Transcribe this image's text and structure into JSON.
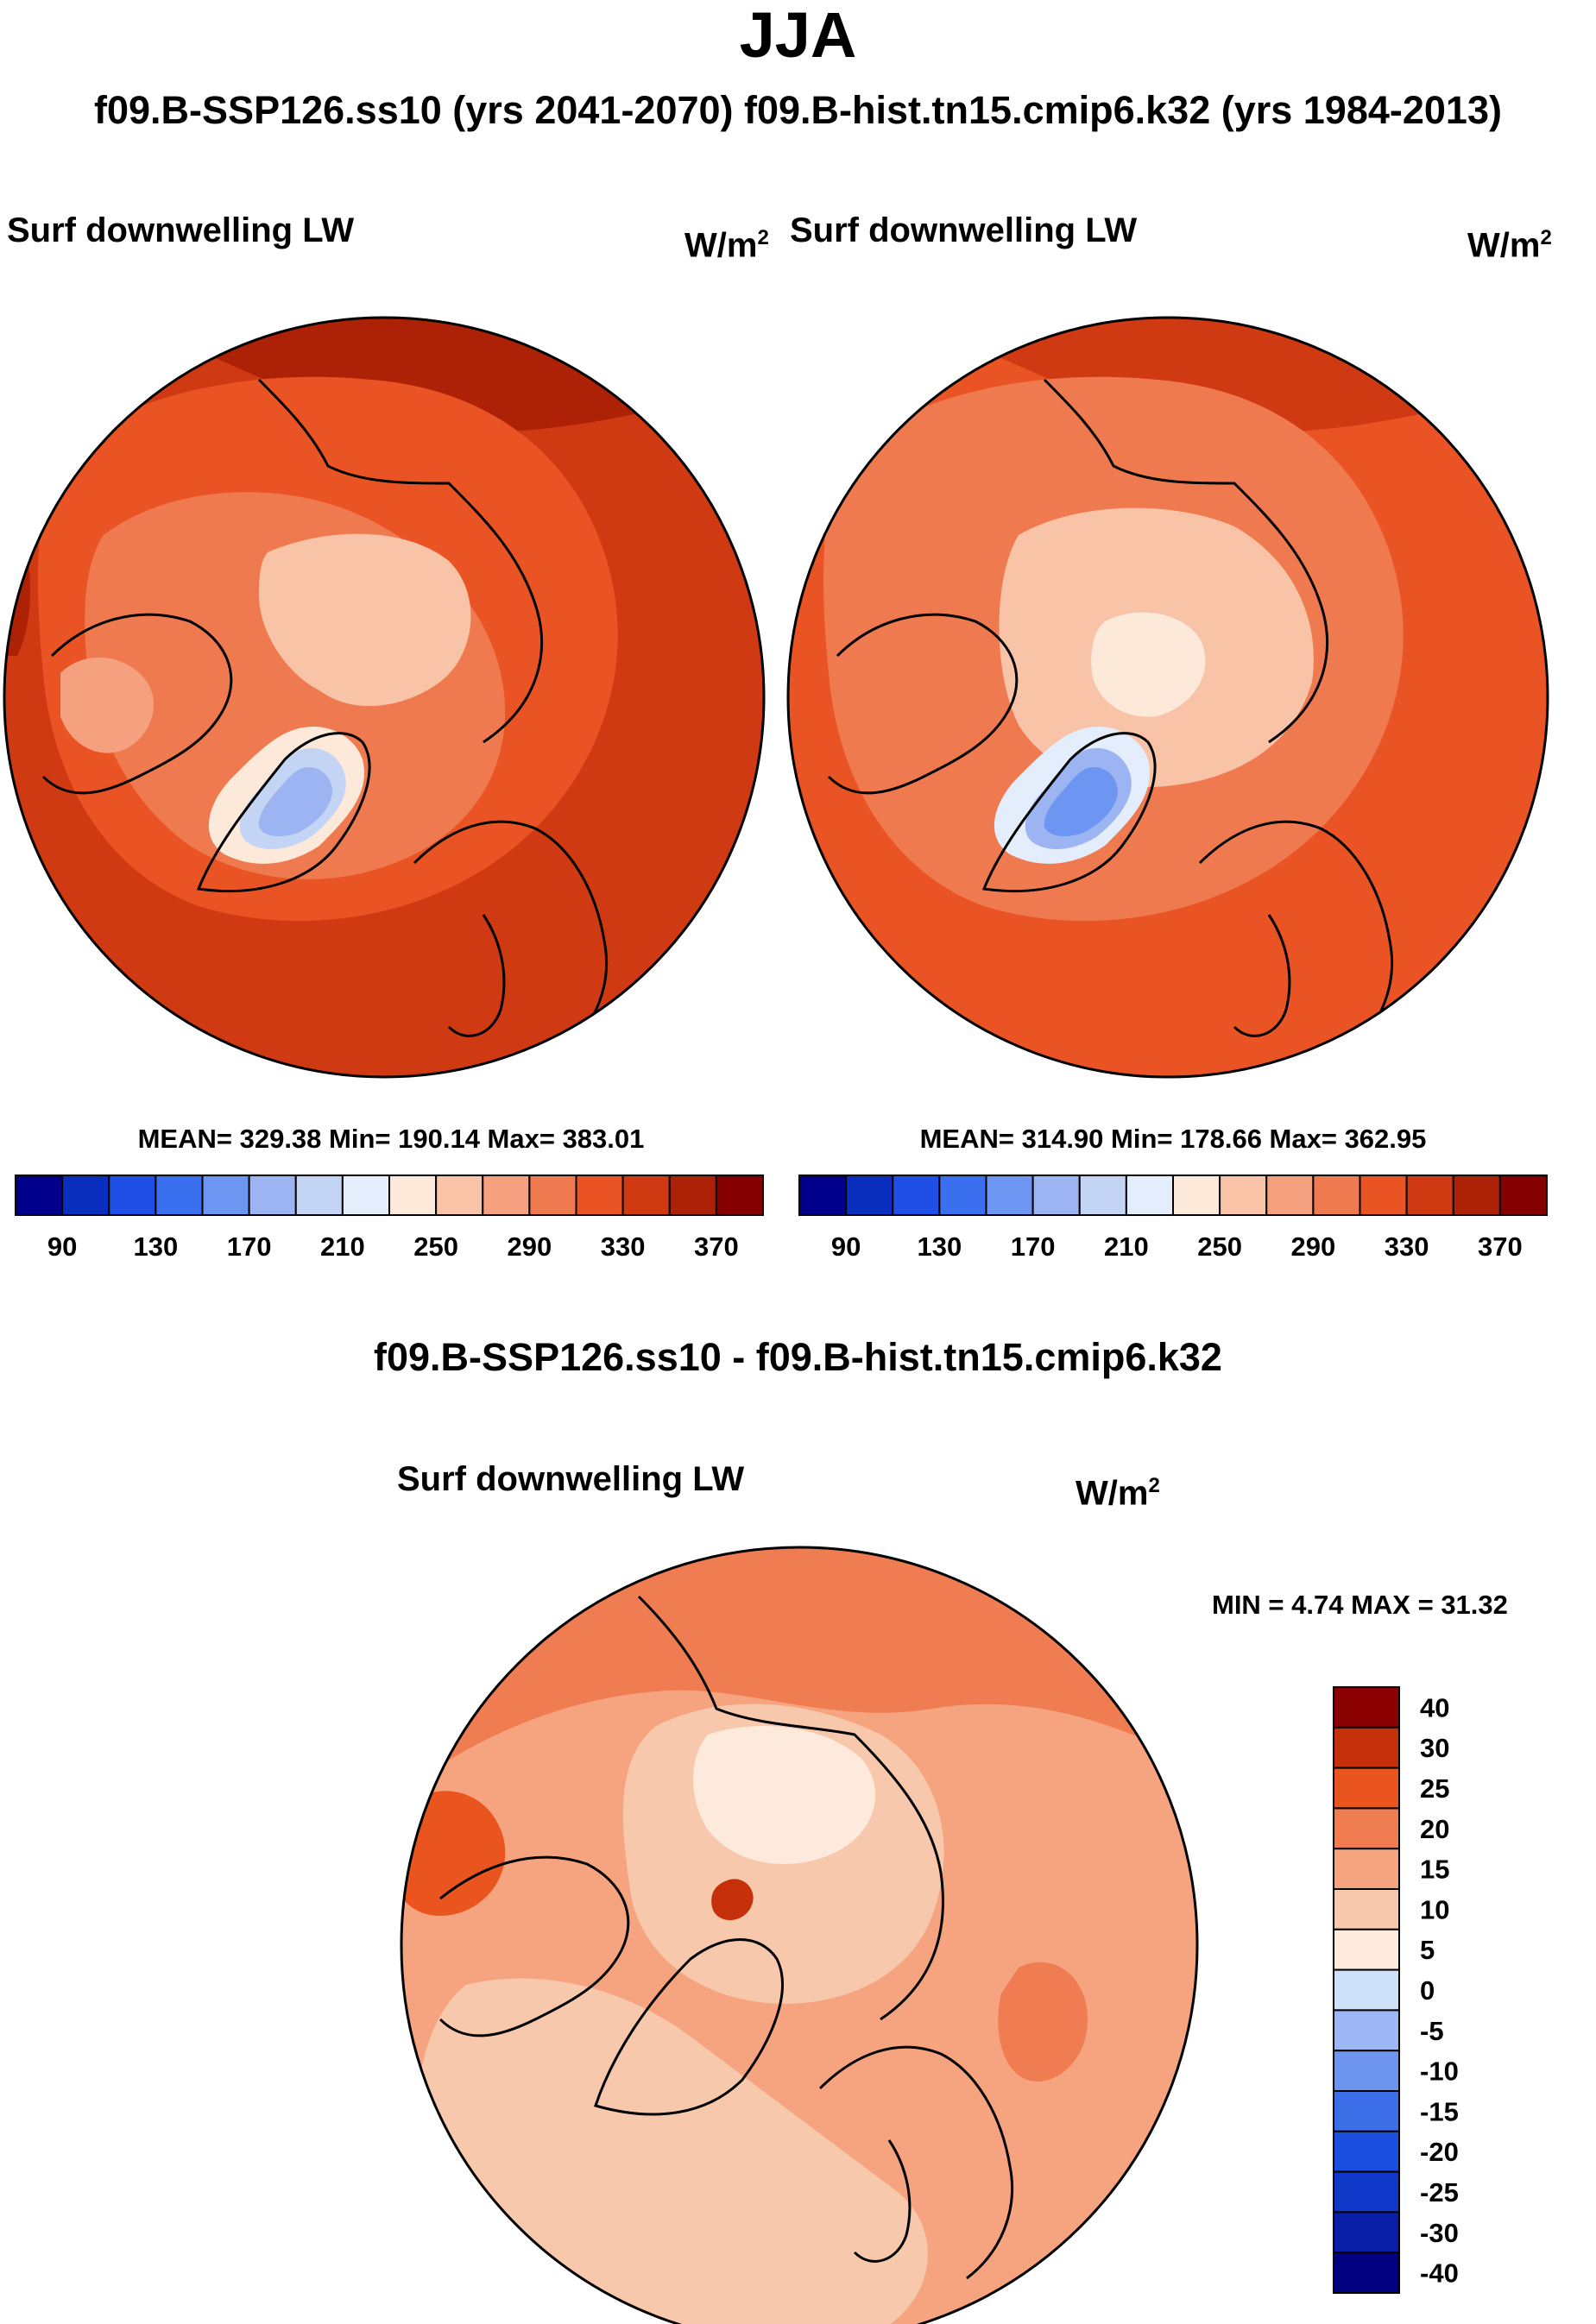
{
  "title": "JJA",
  "subtitle": "f09.B-SSP126.ss10 (yrs 2041-2070)  f09.B-hist.tn15.cmip6.k32 (yrs 1984-2013)",
  "colors": {
    "abs_scale": [
      "#00008b",
      "#0a2fbf",
      "#1f4fe6",
      "#3a6ff0",
      "#6d95f2",
      "#9cb5f2",
      "#c4d4f5",
      "#e3edfb",
      "#fde9da",
      "#f9c3a8",
      "#f5a07e",
      "#f07a4f",
      "#ea5424",
      "#d03a12",
      "#ad2106",
      "#850000"
    ],
    "diff_scale": [
      "#000080",
      "#0a1fa8",
      "#0f38c9",
      "#1a4fe0",
      "#3c6ee8",
      "#6d95f0",
      "#9db7f5",
      "#cfe1f9",
      "#fdeadc",
      "#f8c8ac",
      "#f5a47f",
      "#f07d51",
      "#e9541f",
      "#c52f0a",
      "#8b0000"
    ]
  },
  "panels": [
    {
      "title": "Surf downwelling LW",
      "units": "W/m",
      "units_sup": "2",
      "stats": "MEAN= 329.38  Min= 190.14  Max= 383.01"
    },
    {
      "title": "Surf downwelling LW",
      "units": "W/m",
      "units_sup": "2",
      "stats": "MEAN= 314.90  Min= 178.66  Max= 362.95"
    }
  ],
  "diff_panel": {
    "header": "f09.B-SSP126.ss10 - f09.B-hist.tn15.cmip6.k32",
    "title": "Surf downwelling LW",
    "units": "W/m",
    "units_sup": "2",
    "minmax": "MIN =   4.74 MAX =  31.32"
  },
  "chart_data": [
    {
      "type": "heatmap",
      "projection": "north polar stereographic",
      "title": "Surf downwelling LW",
      "units": "W/m2",
      "period": "f09.B-SSP126.ss10 (yrs 2041-2070)",
      "mean": 329.38,
      "min": 190.14,
      "max": 383.01,
      "colorbar_ticks": [
        "90",
        "130",
        "170",
        "210",
        "250",
        "290",
        "330",
        "370"
      ],
      "colorbar_levels": [
        90,
        110,
        130,
        150,
        170,
        190,
        210,
        230,
        250,
        270,
        290,
        310,
        330,
        350,
        370
      ]
    },
    {
      "type": "heatmap",
      "projection": "north polar stereographic",
      "title": "Surf downwelling LW",
      "units": "W/m2",
      "period": "f09.B-hist.tn15.cmip6.k32 (yrs 1984-2013)",
      "mean": 314.9,
      "min": 178.66,
      "max": 362.95,
      "colorbar_ticks": [
        "90",
        "130",
        "170",
        "210",
        "250",
        "290",
        "330",
        "370"
      ],
      "colorbar_levels": [
        90,
        110,
        130,
        150,
        170,
        190,
        210,
        230,
        250,
        270,
        290,
        310,
        330,
        350,
        370
      ]
    },
    {
      "type": "heatmap",
      "projection": "north polar stereographic",
      "title": "Surf downwelling LW",
      "units": "W/m2",
      "difference": "f09.B-SSP126.ss10 - f09.B-hist.tn15.cmip6.k32",
      "min": 4.74,
      "max": 31.32,
      "colorbar_ticks": [
        "40",
        "30",
        "25",
        "20",
        "15",
        "10",
        "5",
        "0",
        "-5",
        "-10",
        "-15",
        "-20",
        "-25",
        "-30",
        "-40"
      ]
    }
  ]
}
